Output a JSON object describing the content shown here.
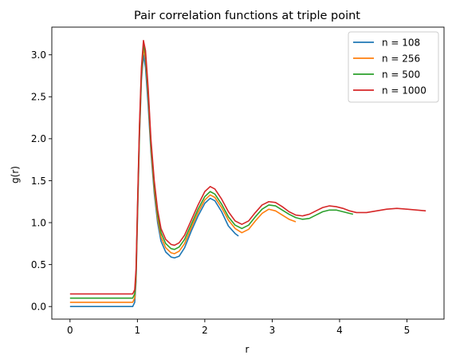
{
  "chart_data": {
    "type": "line",
    "title": "Pair correlation functions at triple point",
    "xlabel": "r",
    "ylabel": "g(r)",
    "xlim": [
      -0.27,
      5.55
    ],
    "ylim": [
      -0.15,
      3.33
    ],
    "xticks": [
      0,
      1,
      2,
      3,
      4,
      5
    ],
    "yticks": [
      0.0,
      0.5,
      1.0,
      1.5,
      2.0,
      2.5,
      3.0
    ],
    "xtick_labels": [
      "0",
      "1",
      "2",
      "3",
      "4",
      "5"
    ],
    "ytick_labels": [
      "0.0",
      "0.5",
      "1.0",
      "1.5",
      "2.0",
      "2.5",
      "3.0"
    ],
    "grid": false,
    "legend_position": "top-right",
    "series": [
      {
        "name": "n = 108",
        "color": "#1f77b4",
        "points": [
          [
            0,
            0.0
          ],
          [
            0.93,
            0.0
          ],
          [
            0.96,
            0.05
          ],
          [
            0.98,
            0.3
          ],
          [
            1.0,
            1.0
          ],
          [
            1.03,
            2.0
          ],
          [
            1.06,
            2.7
          ],
          [
            1.09,
            3.0
          ],
          [
            1.12,
            2.85
          ],
          [
            1.16,
            2.4
          ],
          [
            1.2,
            1.85
          ],
          [
            1.25,
            1.35
          ],
          [
            1.3,
            1.0
          ],
          [
            1.35,
            0.78
          ],
          [
            1.42,
            0.65
          ],
          [
            1.5,
            0.59
          ],
          [
            1.55,
            0.58
          ],
          [
            1.62,
            0.6
          ],
          [
            1.7,
            0.7
          ],
          [
            1.8,
            0.9
          ],
          [
            1.9,
            1.08
          ],
          [
            2.0,
            1.23
          ],
          [
            2.08,
            1.29
          ],
          [
            2.15,
            1.26
          ],
          [
            2.25,
            1.13
          ],
          [
            2.35,
            0.96
          ],
          [
            2.45,
            0.87
          ],
          [
            2.5,
            0.84
          ]
        ]
      },
      {
        "name": "n = 256",
        "color": "#ff7f0e",
        "points": [
          [
            0,
            0.05
          ],
          [
            0.93,
            0.05
          ],
          [
            0.96,
            0.1
          ],
          [
            0.98,
            0.35
          ],
          [
            1.0,
            1.05
          ],
          [
            1.03,
            2.05
          ],
          [
            1.06,
            2.75
          ],
          [
            1.09,
            3.08
          ],
          [
            1.12,
            2.95
          ],
          [
            1.16,
            2.5
          ],
          [
            1.2,
            1.9
          ],
          [
            1.25,
            1.4
          ],
          [
            1.3,
            1.05
          ],
          [
            1.35,
            0.83
          ],
          [
            1.42,
            0.7
          ],
          [
            1.5,
            0.64
          ],
          [
            1.55,
            0.63
          ],
          [
            1.62,
            0.66
          ],
          [
            1.7,
            0.75
          ],
          [
            1.8,
            0.94
          ],
          [
            1.9,
            1.12
          ],
          [
            2.0,
            1.27
          ],
          [
            2.08,
            1.33
          ],
          [
            2.15,
            1.3
          ],
          [
            2.25,
            1.18
          ],
          [
            2.35,
            1.03
          ],
          [
            2.45,
            0.93
          ],
          [
            2.55,
            0.88
          ],
          [
            2.65,
            0.92
          ],
          [
            2.75,
            1.02
          ],
          [
            2.85,
            1.11
          ],
          [
            2.95,
            1.16
          ],
          [
            3.05,
            1.14
          ],
          [
            3.15,
            1.09
          ],
          [
            3.25,
            1.04
          ],
          [
            3.35,
            1.01
          ]
        ]
      },
      {
        "name": "n = 500",
        "color": "#2ca02c",
        "points": [
          [
            0,
            0.1
          ],
          [
            0.93,
            0.1
          ],
          [
            0.96,
            0.15
          ],
          [
            0.98,
            0.4
          ],
          [
            1.0,
            1.1
          ],
          [
            1.03,
            2.1
          ],
          [
            1.06,
            2.8
          ],
          [
            1.09,
            3.13
          ],
          [
            1.12,
            3.0
          ],
          [
            1.16,
            2.55
          ],
          [
            1.2,
            1.95
          ],
          [
            1.25,
            1.45
          ],
          [
            1.3,
            1.1
          ],
          [
            1.35,
            0.88
          ],
          [
            1.42,
            0.75
          ],
          [
            1.5,
            0.69
          ],
          [
            1.55,
            0.68
          ],
          [
            1.62,
            0.71
          ],
          [
            1.7,
            0.8
          ],
          [
            1.8,
            0.98
          ],
          [
            1.9,
            1.16
          ],
          [
            2.0,
            1.31
          ],
          [
            2.08,
            1.37
          ],
          [
            2.15,
            1.34
          ],
          [
            2.25,
            1.22
          ],
          [
            2.35,
            1.07
          ],
          [
            2.45,
            0.97
          ],
          [
            2.55,
            0.93
          ],
          [
            2.65,
            0.97
          ],
          [
            2.75,
            1.07
          ],
          [
            2.85,
            1.16
          ],
          [
            2.95,
            1.21
          ],
          [
            3.05,
            1.2
          ],
          [
            3.15,
            1.15
          ],
          [
            3.25,
            1.1
          ],
          [
            3.35,
            1.06
          ],
          [
            3.45,
            1.04
          ],
          [
            3.55,
            1.05
          ],
          [
            3.65,
            1.09
          ],
          [
            3.75,
            1.13
          ],
          [
            3.85,
            1.15
          ],
          [
            3.95,
            1.15
          ],
          [
            4.05,
            1.13
          ],
          [
            4.15,
            1.11
          ],
          [
            4.2,
            1.1
          ]
        ]
      },
      {
        "name": "n = 1000",
        "color": "#d62728",
        "points": [
          [
            0,
            0.15
          ],
          [
            0.93,
            0.15
          ],
          [
            0.96,
            0.2
          ],
          [
            0.98,
            0.45
          ],
          [
            1.0,
            1.15
          ],
          [
            1.03,
            2.15
          ],
          [
            1.06,
            2.85
          ],
          [
            1.09,
            3.17
          ],
          [
            1.12,
            3.05
          ],
          [
            1.16,
            2.6
          ],
          [
            1.2,
            2.0
          ],
          [
            1.25,
            1.5
          ],
          [
            1.3,
            1.15
          ],
          [
            1.35,
            0.93
          ],
          [
            1.42,
            0.8
          ],
          [
            1.5,
            0.74
          ],
          [
            1.55,
            0.73
          ],
          [
            1.62,
            0.76
          ],
          [
            1.7,
            0.85
          ],
          [
            1.8,
            1.03
          ],
          [
            1.9,
            1.21
          ],
          [
            2.0,
            1.37
          ],
          [
            2.08,
            1.43
          ],
          [
            2.15,
            1.4
          ],
          [
            2.25,
            1.28
          ],
          [
            2.35,
            1.13
          ],
          [
            2.45,
            1.02
          ],
          [
            2.55,
            0.98
          ],
          [
            2.65,
            1.02
          ],
          [
            2.75,
            1.12
          ],
          [
            2.85,
            1.21
          ],
          [
            2.95,
            1.25
          ],
          [
            3.05,
            1.24
          ],
          [
            3.15,
            1.19
          ],
          [
            3.25,
            1.13
          ],
          [
            3.35,
            1.09
          ],
          [
            3.45,
            1.08
          ],
          [
            3.55,
            1.1
          ],
          [
            3.65,
            1.14
          ],
          [
            3.75,
            1.18
          ],
          [
            3.85,
            1.2
          ],
          [
            3.95,
            1.19
          ],
          [
            4.05,
            1.17
          ],
          [
            4.15,
            1.14
          ],
          [
            4.25,
            1.12
          ],
          [
            4.4,
            1.12
          ],
          [
            4.55,
            1.14
          ],
          [
            4.7,
            1.16
          ],
          [
            4.85,
            1.17
          ],
          [
            5.0,
            1.16
          ],
          [
            5.15,
            1.15
          ],
          [
            5.28,
            1.14
          ]
        ]
      }
    ]
  }
}
